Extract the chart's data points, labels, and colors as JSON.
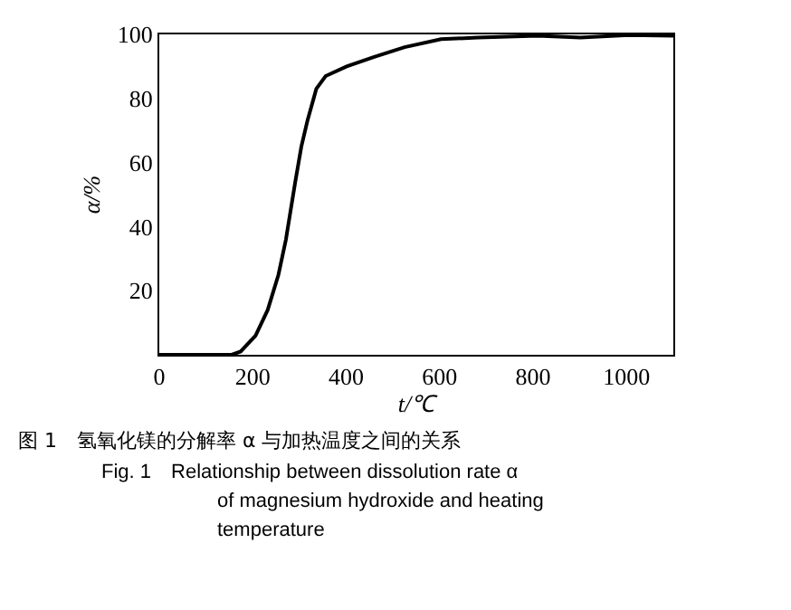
{
  "chart_data": {
    "type": "line",
    "xlabel": "t/℃",
    "ylabel": "α/%",
    "x": [
      0,
      155,
      174,
      206,
      232,
      255,
      271,
      291,
      304,
      317,
      336,
      356,
      401,
      460,
      525,
      603,
      681,
      810,
      901,
      1005,
      1100
    ],
    "series": [
      {
        "color": "#000000",
        "values": [
          0,
          0,
          1,
          6,
          14,
          25,
          36,
          54,
          65,
          73,
          83,
          87,
          90,
          93,
          96,
          98.5,
          99,
          99.6,
          99,
          99.8,
          99.6
        ]
      }
    ],
    "xlim": [
      0,
      1100
    ],
    "xticks": [
      0,
      200,
      400,
      600,
      800,
      1000
    ],
    "ylim": [
      0,
      100
    ],
    "yticks": [
      20,
      40,
      60,
      80,
      100
    ],
    "marker": "none",
    "line_style": "solid",
    "annotations": [
      "图 1　氢氧化镁的分解率 α 与加热温度之间的关系",
      "Fig. 1　Relationship between dissolution rate α",
      "of magnesium hydroxide and heating",
      "temperature"
    ]
  }
}
